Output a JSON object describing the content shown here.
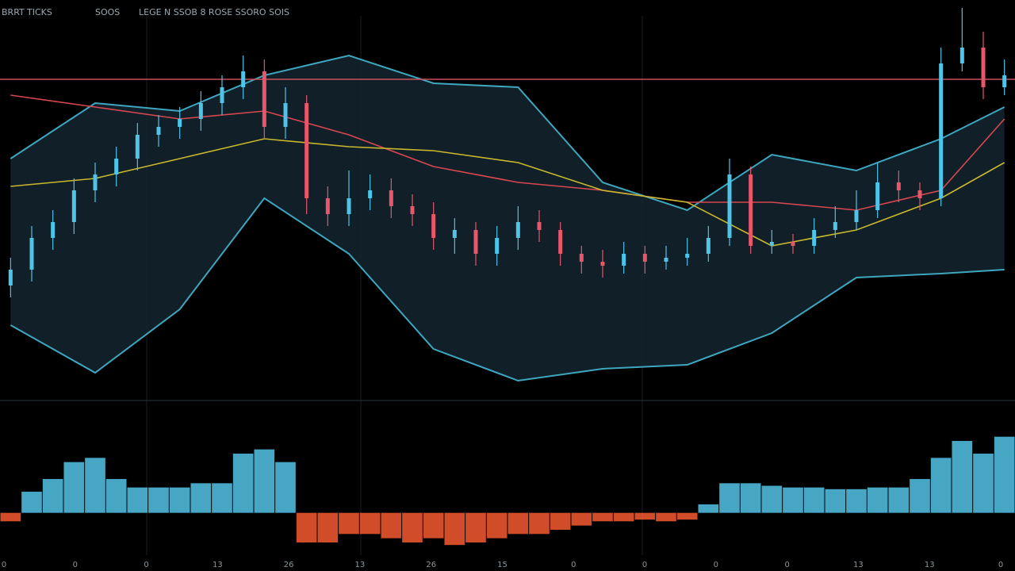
{
  "header": {
    "labels": [
      "BRRT",
      "TICKS",
      "SOOS",
      "LEGE N SSOB 8 ROSE SSORO SOIS"
    ]
  },
  "x_axis_labels": [
    "0",
    "0",
    "0",
    "13",
    "26",
    "13",
    "26",
    "15",
    "0",
    "0",
    "0",
    "0",
    "13",
    "13",
    "0"
  ],
  "chart_data": [
    {
      "type": "candlestick",
      "ylim": [
        0,
        100
      ],
      "up_color": "#4fc3e8",
      "down_color": "#e8566a",
      "open": [
        28,
        32,
        40,
        44,
        52,
        56,
        60,
        66,
        68,
        70,
        74,
        78,
        82,
        68,
        74,
        50,
        46,
        50,
        52,
        48,
        46,
        40,
        42,
        36,
        40,
        44,
        42,
        36,
        34,
        33,
        36,
        34,
        35,
        36,
        40,
        56,
        38,
        39,
        38,
        42,
        44,
        47,
        54,
        52,
        50,
        84,
        88,
        78
      ],
      "high": [
        35,
        43,
        47,
        55,
        59,
        63,
        69,
        71,
        73,
        77,
        81,
        86,
        85,
        78,
        76,
        53,
        57,
        56,
        55,
        51,
        49,
        45,
        44,
        43,
        48,
        47,
        44,
        38,
        37,
        39,
        38,
        38,
        40,
        43,
        60,
        58,
        42,
        41,
        45,
        48,
        52,
        59,
        57,
        54,
        88,
        98,
        92,
        85
      ],
      "low": [
        25,
        29,
        37,
        41,
        49,
        53,
        57,
        63,
        65,
        67,
        71,
        75,
        65,
        65,
        46,
        43,
        43,
        47,
        45,
        43,
        37,
        36,
        33,
        33,
        37,
        39,
        33,
        31,
        30,
        31,
        31,
        32,
        33,
        34,
        38,
        36,
        36,
        36,
        36,
        40,
        42,
        45,
        49,
        47,
        48,
        82,
        75,
        76
      ],
      "close": [
        32,
        40,
        44,
        52,
        56,
        60,
        66,
        68,
        70,
        74,
        78,
        82,
        68,
        74,
        50,
        46,
        50,
        52,
        48,
        46,
        40,
        42,
        36,
        40,
        44,
        42,
        36,
        34,
        33,
        36,
        34,
        35,
        36,
        40,
        56,
        38,
        39,
        38,
        42,
        44,
        47,
        54,
        52,
        50,
        84,
        88,
        78,
        81
      ],
      "level": 80,
      "level_color": "#c9505a",
      "band": {
        "x": [
          0,
          4,
          8,
          12,
          16,
          20,
          24,
          28,
          32,
          36,
          40,
          44,
          47
        ],
        "upper": [
          60,
          74,
          72,
          81,
          86,
          79,
          78,
          54,
          47,
          61,
          57,
          65,
          73
        ],
        "lower": [
          18,
          6,
          22,
          50,
          36,
          12,
          4,
          7,
          8,
          16,
          30,
          31,
          32
        ],
        "color": "#3fa6bf",
        "fill": "#14262f"
      },
      "series": [
        {
          "x": [
            0,
            4,
            8,
            12,
            16,
            20,
            24,
            28,
            32,
            36,
            40,
            44,
            47
          ],
          "color": "#d8474f",
          "values": [
            76,
            73,
            70,
            72,
            66,
            58,
            54,
            52,
            49,
            49,
            47,
            52,
            70
          ]
        },
        {
          "x": [
            0,
            4,
            8,
            12,
            16,
            20,
            24,
            28,
            32,
            36,
            40,
            44,
            47
          ],
          "color": "#c9b82e",
          "values": [
            53,
            55,
            60,
            65,
            63,
            62,
            59,
            52,
            49,
            38,
            42,
            50,
            59
          ]
        }
      ]
    },
    {
      "type": "bar",
      "ylim": [
        -50,
        100
      ],
      "positive_color": "#4fb8d8",
      "negative_color": "#e8552f",
      "values": [
        -10,
        25,
        40,
        60,
        65,
        40,
        30,
        30,
        30,
        35,
        35,
        70,
        75,
        60,
        -35,
        -35,
        -25,
        -25,
        -30,
        -35,
        -30,
        -38,
        -35,
        -30,
        -25,
        -25,
        -20,
        -15,
        -10,
        -10,
        -8,
        -10,
        -8,
        10,
        35,
        35,
        32,
        30,
        30,
        28,
        28,
        30,
        30,
        40,
        65,
        85,
        70,
        90
      ]
    }
  ]
}
